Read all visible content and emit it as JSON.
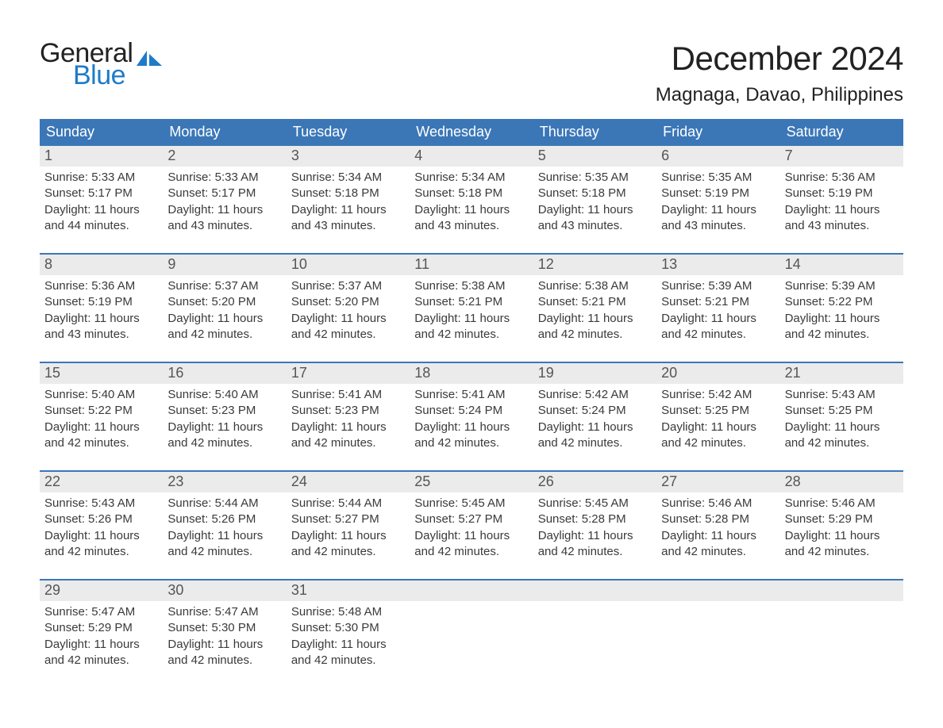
{
  "brand": {
    "line1": "General",
    "line2": "Blue",
    "sail_color": "#1e7bc8"
  },
  "title": "December 2024",
  "location": "Magnaga, Davao, Philippines",
  "colors": {
    "header_bg": "#3b77b7",
    "daynum_bg": "#ebebeb",
    "week_divider": "#3b77b7",
    "page_bg": "#ffffff"
  },
  "typography": {
    "title_fontsize_pt": 32,
    "location_fontsize_pt": 18,
    "dow_fontsize_pt": 14,
    "cell_fontsize_pt": 11
  },
  "layout": {
    "columns": 7,
    "rows": 5,
    "first_day_column_index": 0
  },
  "days_of_week": [
    "Sunday",
    "Monday",
    "Tuesday",
    "Wednesday",
    "Thursday",
    "Friday",
    "Saturday"
  ],
  "labels": {
    "sunrise": "Sunrise",
    "sunset": "Sunset",
    "daylight": "Daylight"
  },
  "days": [
    {
      "n": 1,
      "sunrise": "5:33 AM",
      "sunset": "5:17 PM",
      "daylight_h": 11,
      "daylight_m": 44
    },
    {
      "n": 2,
      "sunrise": "5:33 AM",
      "sunset": "5:17 PM",
      "daylight_h": 11,
      "daylight_m": 43
    },
    {
      "n": 3,
      "sunrise": "5:34 AM",
      "sunset": "5:18 PM",
      "daylight_h": 11,
      "daylight_m": 43
    },
    {
      "n": 4,
      "sunrise": "5:34 AM",
      "sunset": "5:18 PM",
      "daylight_h": 11,
      "daylight_m": 43
    },
    {
      "n": 5,
      "sunrise": "5:35 AM",
      "sunset": "5:18 PM",
      "daylight_h": 11,
      "daylight_m": 43
    },
    {
      "n": 6,
      "sunrise": "5:35 AM",
      "sunset": "5:19 PM",
      "daylight_h": 11,
      "daylight_m": 43
    },
    {
      "n": 7,
      "sunrise": "5:36 AM",
      "sunset": "5:19 PM",
      "daylight_h": 11,
      "daylight_m": 43
    },
    {
      "n": 8,
      "sunrise": "5:36 AM",
      "sunset": "5:19 PM",
      "daylight_h": 11,
      "daylight_m": 43
    },
    {
      "n": 9,
      "sunrise": "5:37 AM",
      "sunset": "5:20 PM",
      "daylight_h": 11,
      "daylight_m": 42
    },
    {
      "n": 10,
      "sunrise": "5:37 AM",
      "sunset": "5:20 PM",
      "daylight_h": 11,
      "daylight_m": 42
    },
    {
      "n": 11,
      "sunrise": "5:38 AM",
      "sunset": "5:21 PM",
      "daylight_h": 11,
      "daylight_m": 42
    },
    {
      "n": 12,
      "sunrise": "5:38 AM",
      "sunset": "5:21 PM",
      "daylight_h": 11,
      "daylight_m": 42
    },
    {
      "n": 13,
      "sunrise": "5:39 AM",
      "sunset": "5:21 PM",
      "daylight_h": 11,
      "daylight_m": 42
    },
    {
      "n": 14,
      "sunrise": "5:39 AM",
      "sunset": "5:22 PM",
      "daylight_h": 11,
      "daylight_m": 42
    },
    {
      "n": 15,
      "sunrise": "5:40 AM",
      "sunset": "5:22 PM",
      "daylight_h": 11,
      "daylight_m": 42
    },
    {
      "n": 16,
      "sunrise": "5:40 AM",
      "sunset": "5:23 PM",
      "daylight_h": 11,
      "daylight_m": 42
    },
    {
      "n": 17,
      "sunrise": "5:41 AM",
      "sunset": "5:23 PM",
      "daylight_h": 11,
      "daylight_m": 42
    },
    {
      "n": 18,
      "sunrise": "5:41 AM",
      "sunset": "5:24 PM",
      "daylight_h": 11,
      "daylight_m": 42
    },
    {
      "n": 19,
      "sunrise": "5:42 AM",
      "sunset": "5:24 PM",
      "daylight_h": 11,
      "daylight_m": 42
    },
    {
      "n": 20,
      "sunrise": "5:42 AM",
      "sunset": "5:25 PM",
      "daylight_h": 11,
      "daylight_m": 42
    },
    {
      "n": 21,
      "sunrise": "5:43 AM",
      "sunset": "5:25 PM",
      "daylight_h": 11,
      "daylight_m": 42
    },
    {
      "n": 22,
      "sunrise": "5:43 AM",
      "sunset": "5:26 PM",
      "daylight_h": 11,
      "daylight_m": 42
    },
    {
      "n": 23,
      "sunrise": "5:44 AM",
      "sunset": "5:26 PM",
      "daylight_h": 11,
      "daylight_m": 42
    },
    {
      "n": 24,
      "sunrise": "5:44 AM",
      "sunset": "5:27 PM",
      "daylight_h": 11,
      "daylight_m": 42
    },
    {
      "n": 25,
      "sunrise": "5:45 AM",
      "sunset": "5:27 PM",
      "daylight_h": 11,
      "daylight_m": 42
    },
    {
      "n": 26,
      "sunrise": "5:45 AM",
      "sunset": "5:28 PM",
      "daylight_h": 11,
      "daylight_m": 42
    },
    {
      "n": 27,
      "sunrise": "5:46 AM",
      "sunset": "5:28 PM",
      "daylight_h": 11,
      "daylight_m": 42
    },
    {
      "n": 28,
      "sunrise": "5:46 AM",
      "sunset": "5:29 PM",
      "daylight_h": 11,
      "daylight_m": 42
    },
    {
      "n": 29,
      "sunrise": "5:47 AM",
      "sunset": "5:29 PM",
      "daylight_h": 11,
      "daylight_m": 42
    },
    {
      "n": 30,
      "sunrise": "5:47 AM",
      "sunset": "5:30 PM",
      "daylight_h": 11,
      "daylight_m": 42
    },
    {
      "n": 31,
      "sunrise": "5:48 AM",
      "sunset": "5:30 PM",
      "daylight_h": 11,
      "daylight_m": 42
    }
  ]
}
